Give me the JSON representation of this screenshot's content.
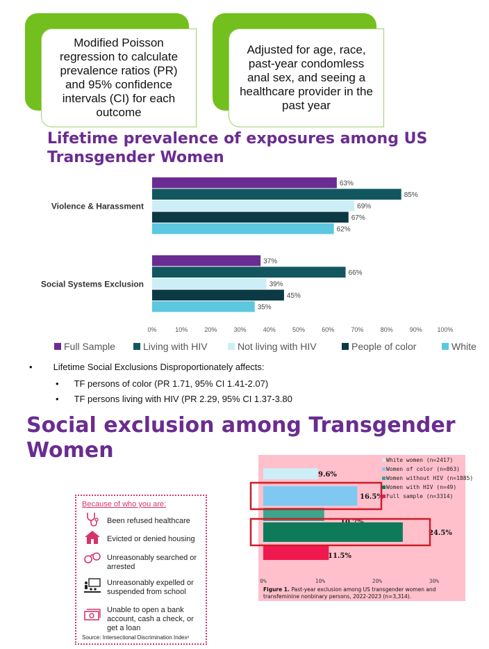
{
  "cards": [
    {
      "text": "Modified Poisson regression to calculate prevalence ratios (PR) and 95% confidence intervals (CI) for each outcome"
    },
    {
      "text": "Adjusted for age, race, past-year condomless anal sex, and seeing a healthcare provider in the past year"
    }
  ],
  "section1_title": "Lifetime prevalence of exposures among US Transgender Women",
  "bullets": {
    "main": "Lifetime Social Exclusions Disproportionately affects:",
    "sub1": "TF persons of color (PR 1.71, 95% CI 1.41-2.07)",
    "sub2": "TF persons living with HIV (PR 2.29, 95% CI 1.37-3.80"
  },
  "section2_title": "Social exclusion among Transgender Women",
  "discrimination_box": {
    "heading": "Because of who you are:",
    "items": [
      {
        "icon": "stethoscope-icon",
        "text": "Been refused healthcare"
      },
      {
        "icon": "house-icon",
        "text": "Evicted or denied housing"
      },
      {
        "icon": "handcuffs-icon",
        "text": "Unreasonably searched or arrested"
      },
      {
        "icon": "classroom-icon",
        "text": "Unreasonably expelled or suspended from school"
      },
      {
        "icon": "money-icon",
        "text": "Unable to open a bank account, cash a check, or get a loan"
      }
    ],
    "source": "Source: Intersectional Discrimination Index¹"
  },
  "chart_data": [
    {
      "type": "bar",
      "orientation": "horizontal",
      "categories": [
        "Violence & Harassment",
        "Social Systems Exclusion"
      ],
      "series": [
        {
          "name": "Full Sample",
          "color": "#6a2c91",
          "values": [
            63,
            37
          ]
        },
        {
          "name": "Living with HIV",
          "color": "#12575f",
          "values": [
            85,
            66
          ]
        },
        {
          "name": "Not living with HIV",
          "color": "#cdeef7",
          "values": [
            69,
            39
          ]
        },
        {
          "name": "People of color",
          "color": "#0b3a44",
          "values": [
            67,
            45
          ]
        },
        {
          "name": "White",
          "color": "#5bc8df",
          "values": [
            62,
            35
          ]
        }
      ],
      "value_labels": [
        [
          "63%",
          "85%",
          "69%",
          "67%",
          "62%"
        ],
        [
          "37%",
          "66%",
          "39%",
          "45%",
          "35%"
        ]
      ],
      "xlim": [
        0,
        100
      ],
      "xticks": [
        "0%",
        "10%",
        "20%",
        "30%",
        "40%",
        "50%",
        "60%",
        "70%",
        "80%",
        "90%",
        "100%"
      ],
      "legend_position": "bottom",
      "grid": false
    },
    {
      "type": "bar",
      "orientation": "horizontal",
      "series": [
        {
          "name": "White women (n=2417)",
          "color": "#cdeef7",
          "value": 9.6,
          "label": "9.6%"
        },
        {
          "name": "Women of color (n=863)",
          "color": "#7ec8f2",
          "value": 16.5,
          "label": "16.5%"
        },
        {
          "name": "Women without HIV (n=1885)",
          "color": "#3aa58a",
          "value": 10.7,
          "label": "10.7%"
        },
        {
          "name": "Women with HIV (n=49)",
          "color": "#0e7a5a",
          "value": 24.5,
          "label": "24.5%"
        },
        {
          "name": "Full sample (n=3314)",
          "color": "#f0194f",
          "value": 11.5,
          "label": "11.5%"
        }
      ],
      "highlighted": [
        "Women of color (n=863)",
        "Women with HIV (n=49)"
      ],
      "xlim": [
        0,
        30
      ],
      "xticks": [
        "0%",
        "10%",
        "20%",
        "30%"
      ],
      "legend_position": "top-right",
      "caption_bold": "Figure 1.",
      "caption": "Past-year exclusion among US transgender women and transfeminine nonbinary persons, 2022-2023 (n=3,314)."
    }
  ]
}
